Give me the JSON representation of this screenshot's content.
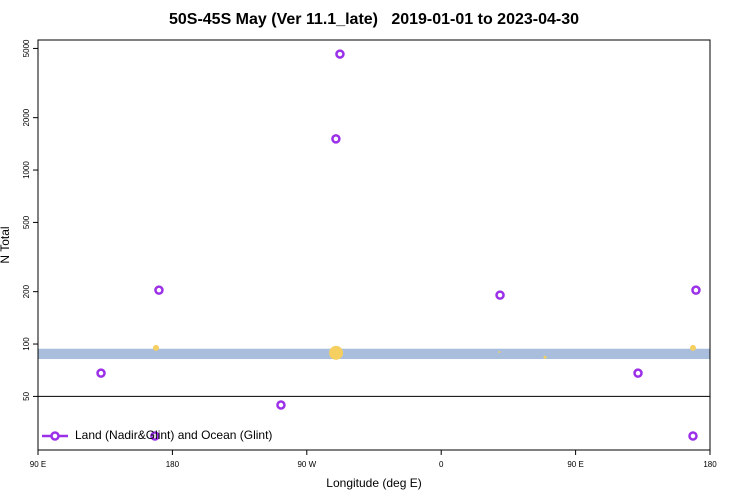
{
  "chart_data": {
    "type": "scatter",
    "title": "50S-45S May (Ver 11.1_late)   2019-01-01 to 2023-04-30",
    "xlabel": "Longitude (deg E)",
    "ylabel": "N Total",
    "xlim": [
      90,
      540
    ],
    "xticks": [
      {
        "value": 90,
        "label": "90 E"
      },
      180,
      {
        "value": 270,
        "label": "90 W"
      },
      {
        "value": 360,
        "label": "0"
      },
      {
        "value": 450,
        "label": "90 E"
      },
      {
        "value": 540,
        "label": "180"
      }
    ],
    "ylim": [
      24.6,
      5590
    ],
    "yticks": [
      50,
      100,
      200,
      500,
      1000,
      2000,
      5000
    ],
    "ylog": true,
    "legend": "lower left",
    "reference_line": 50,
    "band": [
      82,
      94
    ],
    "band_color": "#a8bedc",
    "series": [
      {
        "name": "Land (Nadir&Glint) and Ocean (Glint)",
        "color": "#9b30e8",
        "x": [
          132.2,
          171,
          168.3,
          252.7,
          292.2,
          289.5,
          399.4,
          491.8,
          528.6,
          530.6
        ],
        "values": [
          68,
          204,
          29.6,
          44.6,
          4640,
          1510,
          191,
          68,
          29.6,
          204
        ]
      }
    ],
    "highlights": {
      "color": "#f5d060",
      "x": [
        169,
        289.6,
        399,
        429.5,
        528.6
      ],
      "values": [
        95,
        89,
        90,
        84,
        95
      ],
      "sizes": [
        3,
        7,
        1,
        1.5,
        3
      ]
    }
  }
}
